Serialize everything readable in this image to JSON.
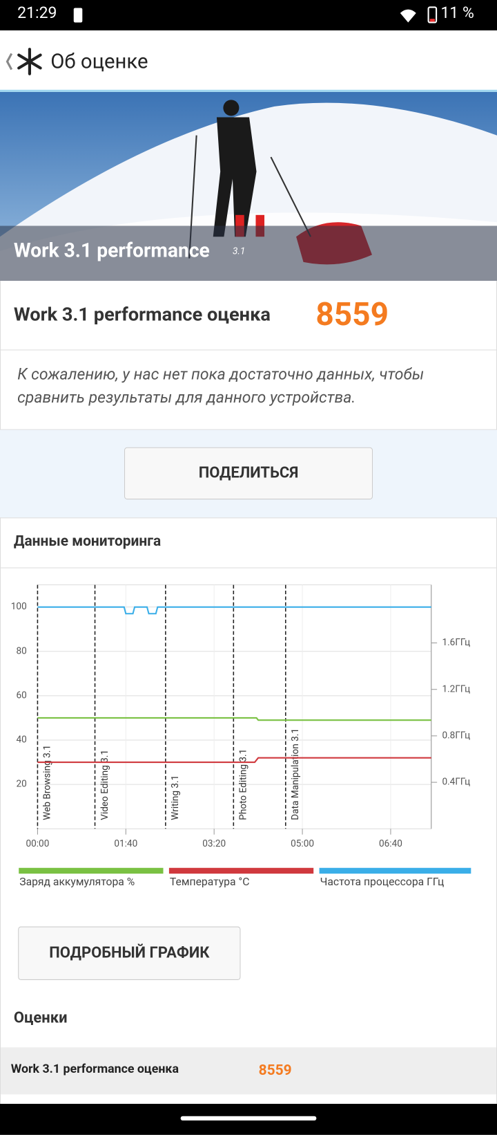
{
  "status_bar": {
    "time": "21:29",
    "battery": "11 %"
  },
  "header": {
    "title": "Об оценке"
  },
  "banner": {
    "title": "Work 3.1 performance",
    "version": "3.1"
  },
  "score": {
    "label": "Work 3.1 performance оценка",
    "value": "8559"
  },
  "message": "К сожалению, у нас нет пока достаточно данных, чтобы сравнить результаты для данного устройства.",
  "share_button": "ПОДЕЛИТЬСЯ",
  "monitoring": {
    "title": "Данные мониторинга"
  },
  "chart_data": {
    "type": "line",
    "xlim": [
      0,
      446
    ],
    "xticks": [
      {
        "value": 0,
        "label": "00:00"
      },
      {
        "value": 100,
        "label": "01:40"
      },
      {
        "value": 200,
        "label": "03:20"
      },
      {
        "value": 300,
        "label": "05:00"
      },
      {
        "value": 400,
        "label": "06:40"
      }
    ],
    "ylim": [
      0,
      110
    ],
    "yticks": [
      20,
      40,
      60,
      80,
      100
    ],
    "y2lim": [
      0,
      2.1
    ],
    "y2ticks": [
      {
        "value": 0.4,
        "label": "0.4ГГц"
      },
      {
        "value": 0.8,
        "label": "0.8ГГц"
      },
      {
        "value": 1.2,
        "label": "1.2ГГц"
      },
      {
        "value": 1.6,
        "label": "1.6ГГц"
      }
    ],
    "grid": true,
    "markers": [
      {
        "x": 0,
        "label": "Web Browsing 3.1"
      },
      {
        "x": 65,
        "label": "Video Editing 3.1"
      },
      {
        "x": 145,
        "label": "Writing 3.1"
      },
      {
        "x": 222,
        "label": "Photo Editing 3.1"
      },
      {
        "x": 281,
        "label": "Data Manipulation 3.1"
      }
    ],
    "series": [
      {
        "name": "Заряд аккумулятора %",
        "color": "#7ac143",
        "x": [
          0,
          248,
          250,
          446
        ],
        "values": [
          50,
          50,
          49,
          49
        ]
      },
      {
        "name": "Температура °C",
        "color": "#d0393e",
        "x": [
          0,
          246,
          250,
          446
        ],
        "values": [
          30,
          30,
          32,
          32
        ]
      },
      {
        "name": "Частота процессора ГГц",
        "color": "#3aaee8",
        "x": [
          0,
          98,
          100,
          108,
          110,
          124,
          126,
          134,
          136,
          446
        ],
        "values": [
          100,
          100,
          97,
          97,
          100,
          100,
          97,
          97,
          100,
          100
        ]
      }
    ]
  },
  "detail_button": "ПОДРОБНЫЙ ГРАФИК",
  "scores": {
    "title": "Оценки",
    "rows": [
      {
        "label": "Work 3.1 performance оценка",
        "value": "8559"
      }
    ]
  }
}
